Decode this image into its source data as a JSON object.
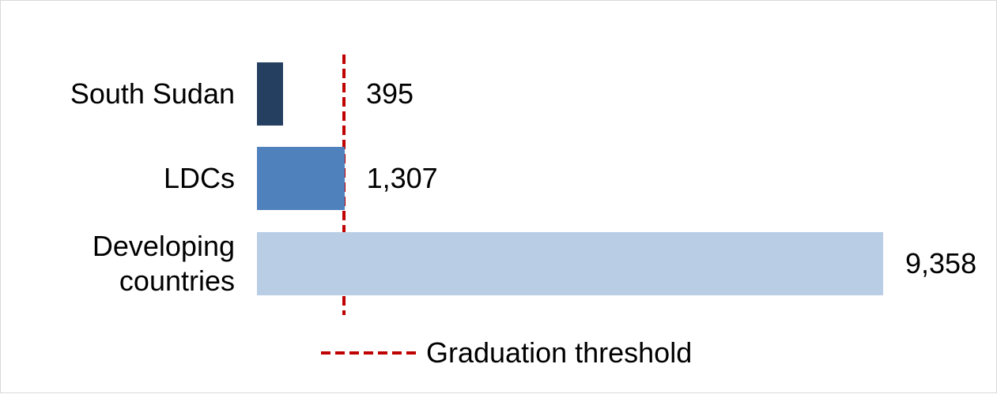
{
  "chart_data": {
    "type": "bar",
    "orientation": "horizontal",
    "categories": [
      "South Sudan",
      "LDCs",
      "Developing countries"
    ],
    "values": [
      395,
      1307,
      9358
    ],
    "value_labels": [
      "395",
      "1,307",
      "9,358"
    ],
    "colors": [
      "#243f60",
      "#4f81bd",
      "#b9cde5"
    ],
    "threshold": {
      "name": "Graduation threshold",
      "value": 1300,
      "color": "#c00000"
    }
  }
}
